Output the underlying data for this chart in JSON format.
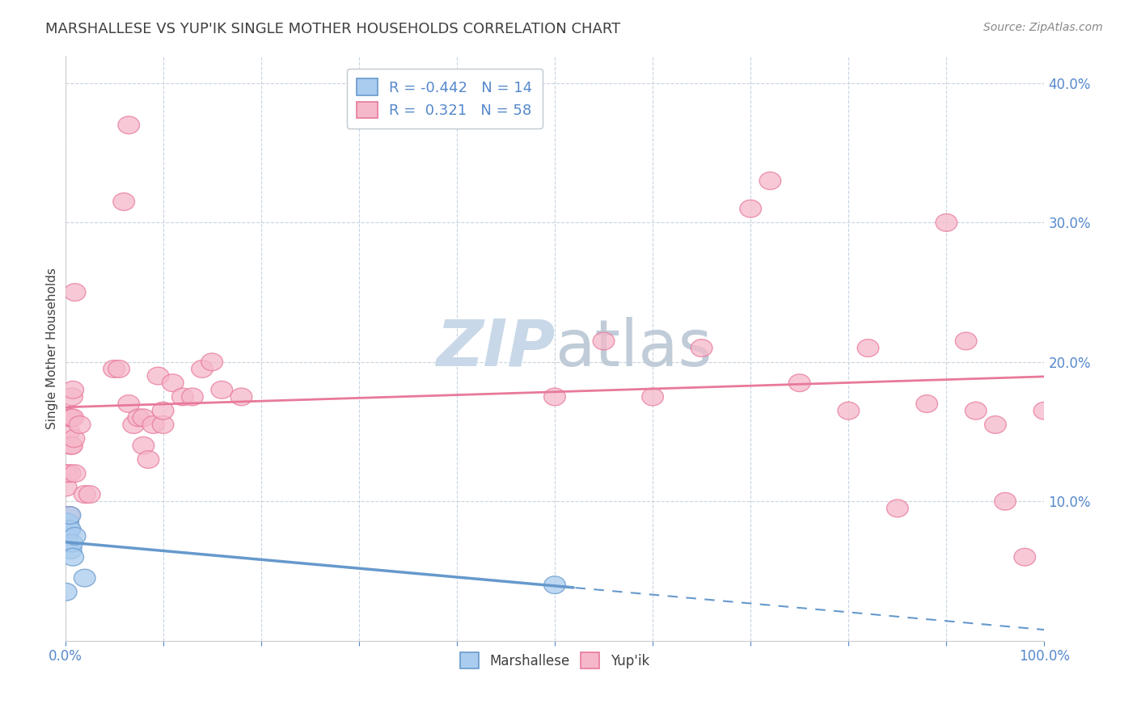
{
  "title": "MARSHALLESE VS YUP'IK SINGLE MOTHER HOUSEHOLDS CORRELATION CHART",
  "source": "Source: ZipAtlas.com",
  "ylabel": "Single Mother Households",
  "legend_marshallese": "Marshallese",
  "legend_yupik": "Yup'ik",
  "R_marshallese": -0.442,
  "N_marshallese": 14,
  "R_yupik": 0.321,
  "N_yupik": 58,
  "marshallese_x": [
    0.001,
    0.002,
    0.002,
    0.003,
    0.003,
    0.004,
    0.005,
    0.005,
    0.006,
    0.007,
    0.008,
    0.01,
    0.02,
    0.5
  ],
  "marshallese_y": [
    0.035,
    0.085,
    0.075,
    0.085,
    0.07,
    0.08,
    0.08,
    0.09,
    0.065,
    0.07,
    0.06,
    0.075,
    0.045,
    0.04
  ],
  "yupik_x": [
    0.001,
    0.002,
    0.003,
    0.004,
    0.004,
    0.005,
    0.005,
    0.006,
    0.006,
    0.007,
    0.007,
    0.008,
    0.008,
    0.009,
    0.01,
    0.01,
    0.015,
    0.02,
    0.025,
    0.05,
    0.055,
    0.06,
    0.065,
    0.065,
    0.07,
    0.075,
    0.08,
    0.08,
    0.085,
    0.09,
    0.095,
    0.1,
    0.1,
    0.11,
    0.12,
    0.13,
    0.14,
    0.15,
    0.16,
    0.18,
    0.5,
    0.55,
    0.6,
    0.65,
    0.7,
    0.72,
    0.75,
    0.8,
    0.82,
    0.85,
    0.88,
    0.9,
    0.92,
    0.93,
    0.95,
    0.96,
    0.98,
    1.0
  ],
  "yupik_y": [
    0.11,
    0.12,
    0.16,
    0.15,
    0.09,
    0.16,
    0.12,
    0.16,
    0.14,
    0.175,
    0.14,
    0.16,
    0.18,
    0.145,
    0.12,
    0.25,
    0.155,
    0.105,
    0.105,
    0.195,
    0.195,
    0.315,
    0.37,
    0.17,
    0.155,
    0.16,
    0.16,
    0.14,
    0.13,
    0.155,
    0.19,
    0.155,
    0.165,
    0.185,
    0.175,
    0.175,
    0.195,
    0.2,
    0.18,
    0.175,
    0.175,
    0.215,
    0.175,
    0.21,
    0.31,
    0.33,
    0.185,
    0.165,
    0.21,
    0.095,
    0.17,
    0.3,
    0.215,
    0.165,
    0.155,
    0.1,
    0.06,
    0.165
  ],
  "marshallese_color": "#6699cc",
  "marshallese_scatter_color": "#aaccee",
  "yupik_color": "#e8799a",
  "yupik_scatter_color": "#f5b8ca",
  "watermark_zip_color": "#c8d8e8",
  "watermark_atlas_color": "#c0ccd8",
  "bg_color": "#ffffff",
  "grid_color": "#c8d4e0",
  "axis_label_color": "#5588cc",
  "title_color": "#404040",
  "source_color": "#888888",
  "xlim": [
    0.0,
    1.0
  ],
  "ylim": [
    0.0,
    0.42
  ],
  "xticks": [
    0.0,
    0.1,
    0.2,
    0.3,
    0.4,
    0.5,
    0.6,
    0.7,
    0.8,
    0.9,
    1.0
  ],
  "yticks": [
    0.0,
    0.1,
    0.2,
    0.3,
    0.4
  ],
  "xtick_labels_bottom": [
    "0.0%",
    "",
    "",
    "",
    "",
    "",
    "",
    "",
    "",
    "",
    "100.0%"
  ],
  "ytick_labels_right": [
    "",
    "10.0%",
    "20.0%",
    "30.0%",
    "40.0%"
  ]
}
